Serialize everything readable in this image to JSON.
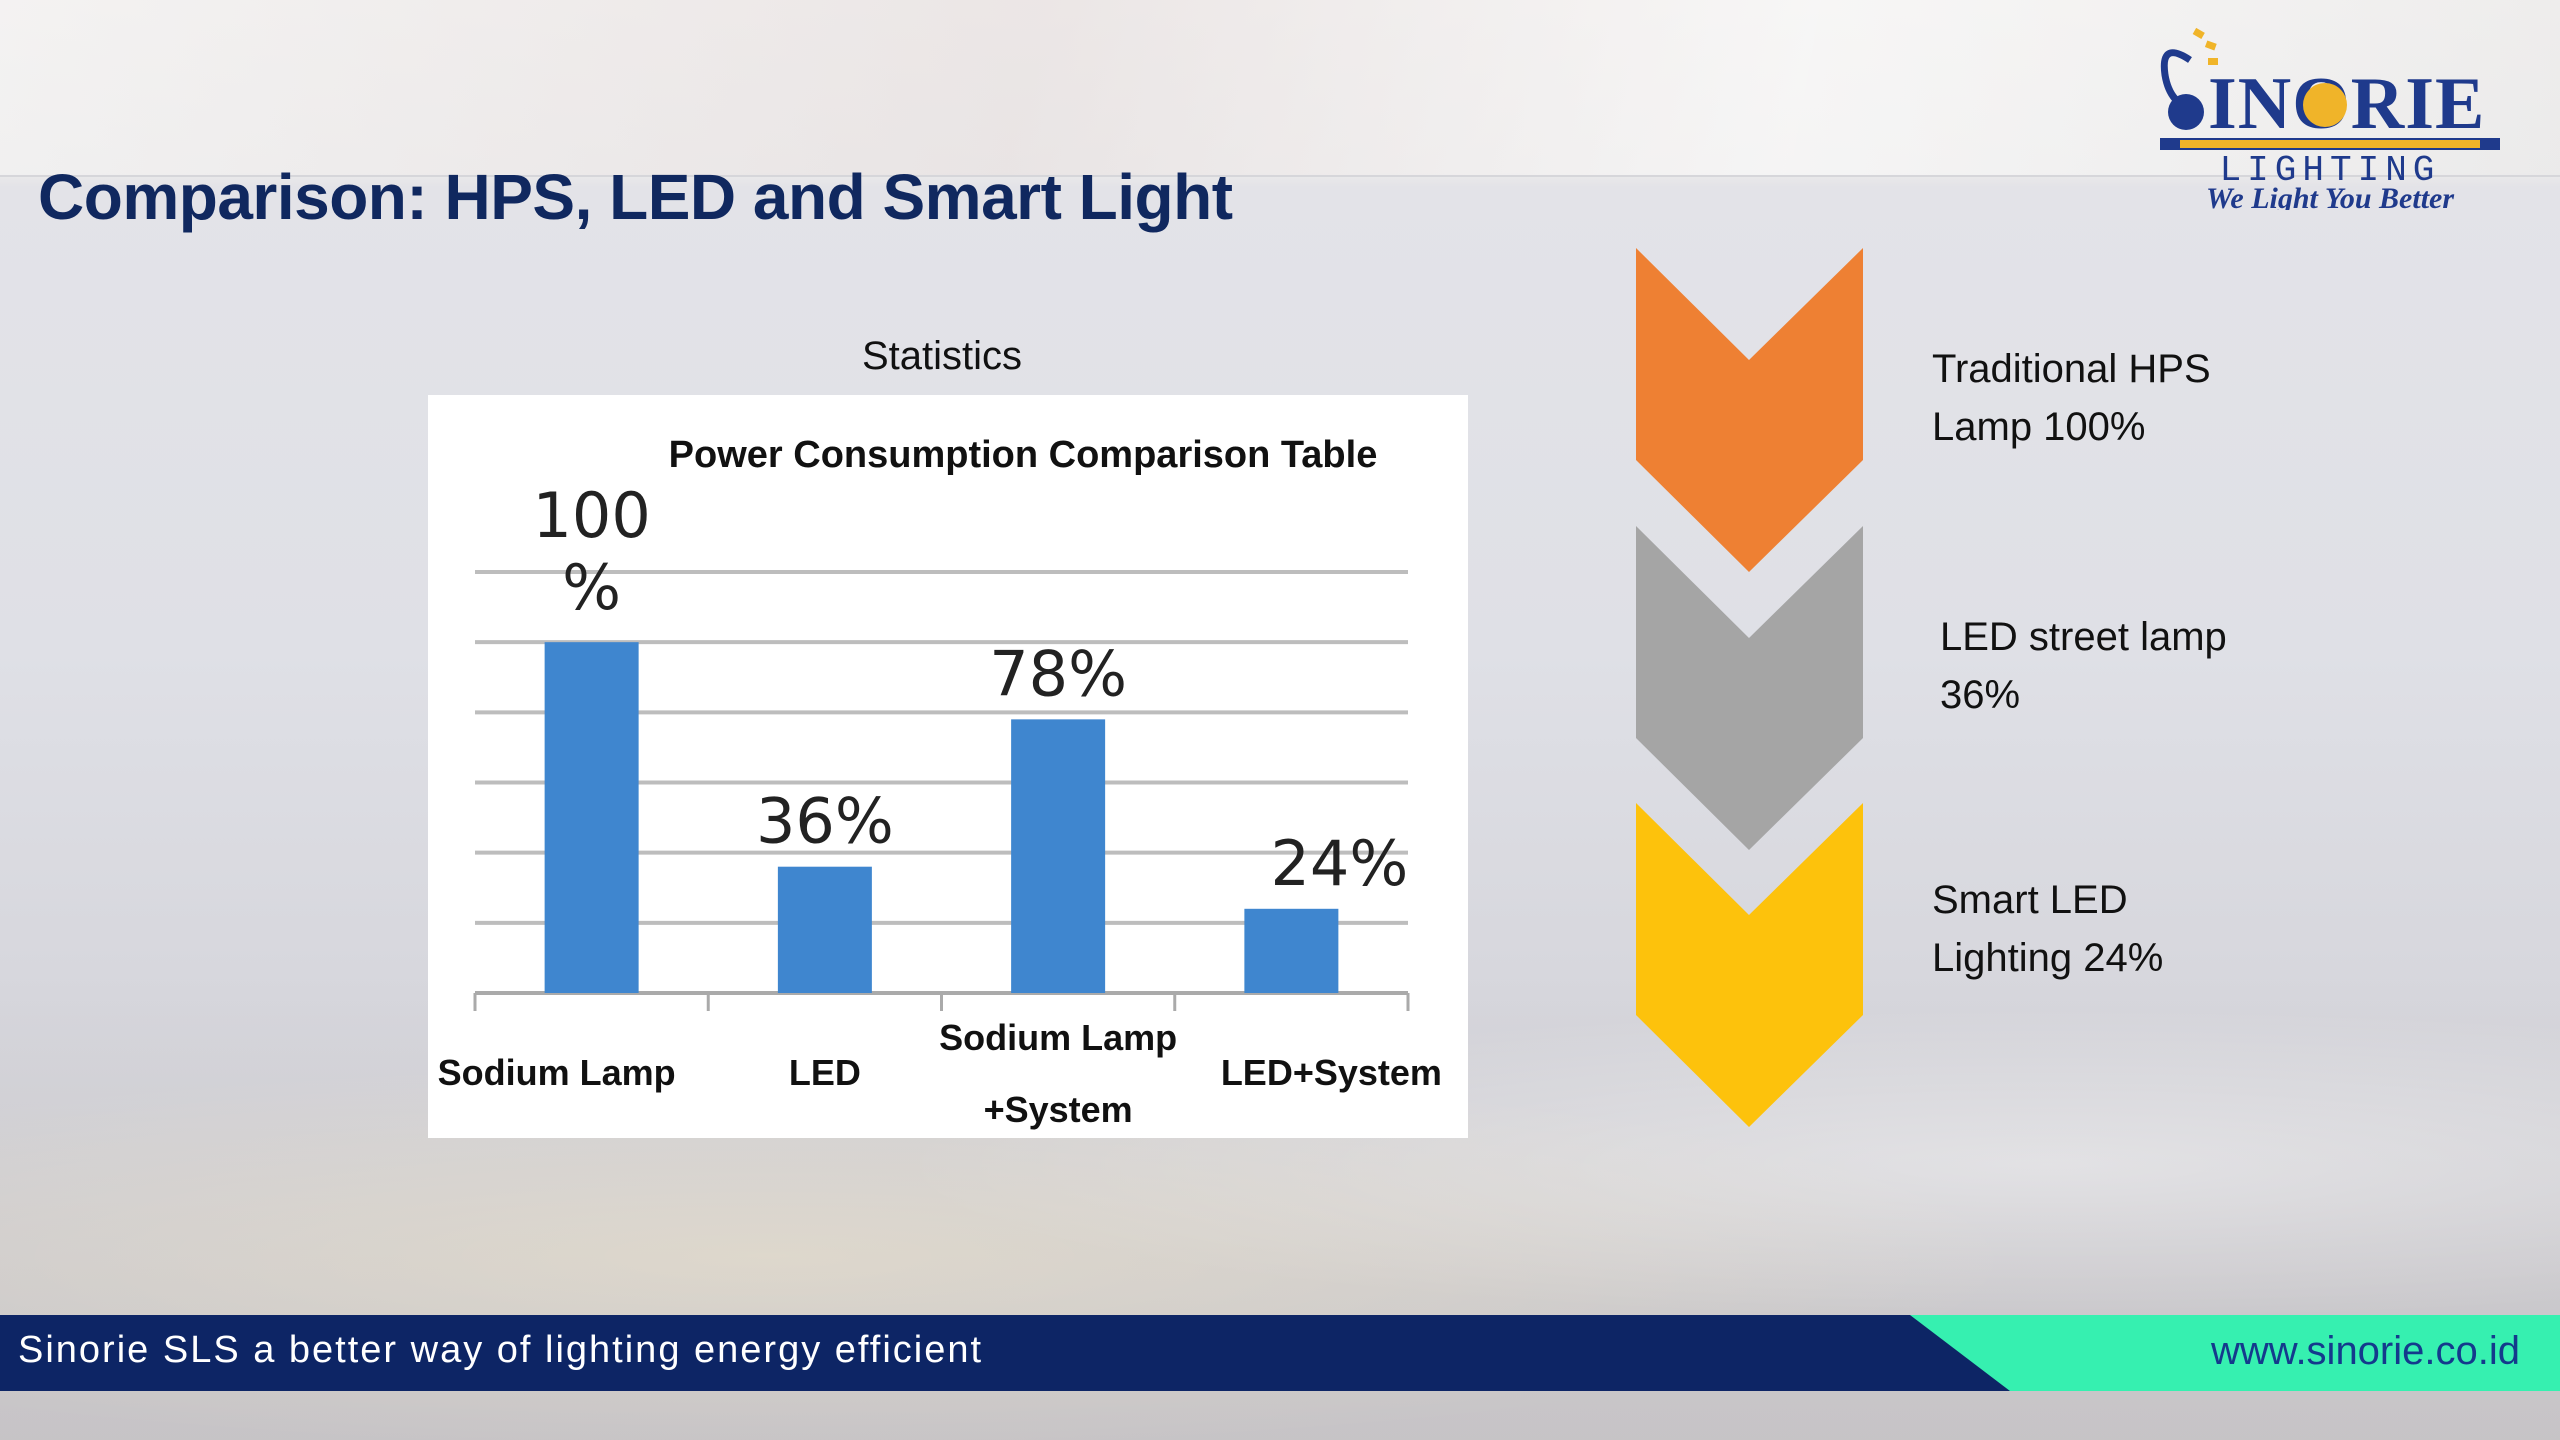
{
  "header": {
    "title": "Comparison: HPS, LED and Smart Light"
  },
  "logo": {
    "brand": "SINORIE",
    "sub": "LIGHTING",
    "tagline": "We Light You Better"
  },
  "chart_section": {
    "heading": "Statistics"
  },
  "chart_data": {
    "type": "bar",
    "title": "Power Consumption Comparison Table",
    "categories": [
      "Sodium Lamp",
      "LED",
      "Sodium Lamp +System",
      "LED+System"
    ],
    "category_lines": [
      [
        "Sodium Lamp"
      ],
      [
        "LED"
      ],
      [
        "Sodium Lamp",
        "+System"
      ],
      [
        "LED+System"
      ]
    ],
    "values": [
      100,
      36,
      78,
      24
    ],
    "data_labels": [
      "100 %",
      "36%",
      "78%",
      "24%"
    ],
    "ylim": [
      0,
      120
    ],
    "grid": true,
    "bar_color": "#3f86cf"
  },
  "chevrons": [
    {
      "color": "#ee8033",
      "label_lines": [
        "Traditional HPS",
        "Lamp 100%"
      ]
    },
    {
      "color": "#a5a5a5",
      "label_lines": [
        "LED street lamp",
        "36%"
      ]
    },
    {
      "color": "#fdc20c",
      "label_lines": [
        "Smart LED",
        "Lighting  24%"
      ]
    }
  ],
  "footer": {
    "left_text": "Sinorie SLS a better way of lighting energy efficient",
    "right_text": "www.sinorie.co.id"
  }
}
